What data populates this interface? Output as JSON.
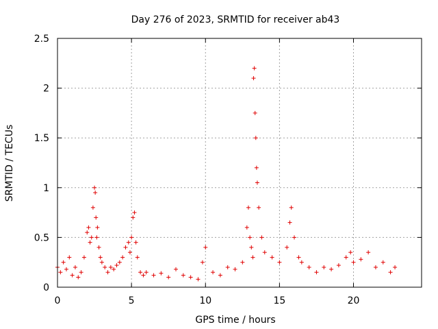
{
  "chart_data": {
    "type": "scatter",
    "title": "Day 276 of 2023, SRMTID for receiver ab43",
    "xlabel": "GPS time / hours",
    "ylabel": "SRMTID / TECUs",
    "xlim": [
      0,
      24.6
    ],
    "ylim": [
      0,
      2.5
    ],
    "xticks": [
      0,
      5,
      10,
      15,
      20
    ],
    "yticks": [
      0,
      0.5,
      1,
      1.5,
      2,
      2.5
    ],
    "xtick_labels": [
      "0",
      "5",
      "10",
      "15",
      "20"
    ],
    "ytick_labels": [
      "0",
      "0.5",
      "1",
      "1.5",
      "2",
      "2.5"
    ],
    "grid": true,
    "marker": "plus",
    "color": "#e00000",
    "series": [
      {
        "name": "SRMTID",
        "x": [
          0.0,
          0.2,
          0.4,
          0.6,
          0.8,
          1.0,
          1.2,
          1.4,
          1.6,
          1.8,
          2.0,
          2.1,
          2.2,
          2.3,
          2.4,
          2.5,
          2.55,
          2.6,
          2.65,
          2.7,
          2.8,
          2.9,
          3.0,
          3.2,
          3.4,
          3.6,
          3.8,
          4.0,
          4.2,
          4.4,
          4.6,
          4.8,
          4.9,
          5.0,
          5.1,
          5.2,
          5.3,
          5.4,
          5.6,
          5.8,
          6.0,
          6.5,
          7.0,
          7.5,
          8.0,
          8.5,
          9.0,
          9.5,
          9.8,
          10.0,
          10.5,
          11.0,
          11.5,
          12.0,
          12.5,
          12.8,
          12.9,
          13.0,
          13.1,
          13.2,
          13.25,
          13.3,
          13.35,
          13.4,
          13.45,
          13.5,
          13.6,
          13.8,
          14.0,
          14.5,
          15.0,
          15.5,
          15.7,
          15.8,
          16.0,
          16.3,
          16.5,
          17.0,
          17.5,
          18.0,
          18.5,
          19.0,
          19.5,
          19.8,
          20.0,
          20.5,
          21.0,
          21.5,
          22.0,
          22.5,
          22.8
        ],
        "y": [
          0.2,
          0.15,
          0.25,
          0.18,
          0.3,
          0.12,
          0.2,
          0.1,
          0.15,
          0.3,
          0.55,
          0.6,
          0.45,
          0.5,
          0.8,
          1.0,
          0.95,
          0.7,
          0.5,
          0.6,
          0.4,
          0.3,
          0.25,
          0.2,
          0.15,
          0.2,
          0.18,
          0.22,
          0.25,
          0.3,
          0.4,
          0.45,
          0.35,
          0.5,
          0.7,
          0.75,
          0.45,
          0.3,
          0.15,
          0.12,
          0.15,
          0.12,
          0.14,
          0.1,
          0.18,
          0.12,
          0.1,
          0.08,
          0.25,
          0.4,
          0.15,
          0.12,
          0.2,
          0.18,
          0.25,
          0.6,
          0.8,
          0.5,
          0.4,
          0.3,
          2.1,
          2.2,
          1.75,
          1.5,
          1.2,
          1.05,
          0.8,
          0.5,
          0.35,
          0.3,
          0.25,
          0.4,
          0.65,
          0.8,
          0.5,
          0.3,
          0.25,
          0.2,
          0.15,
          0.2,
          0.18,
          0.22,
          0.3,
          0.35,
          0.25,
          0.28,
          0.35,
          0.2,
          0.25,
          0.15,
          0.2
        ]
      }
    ]
  }
}
